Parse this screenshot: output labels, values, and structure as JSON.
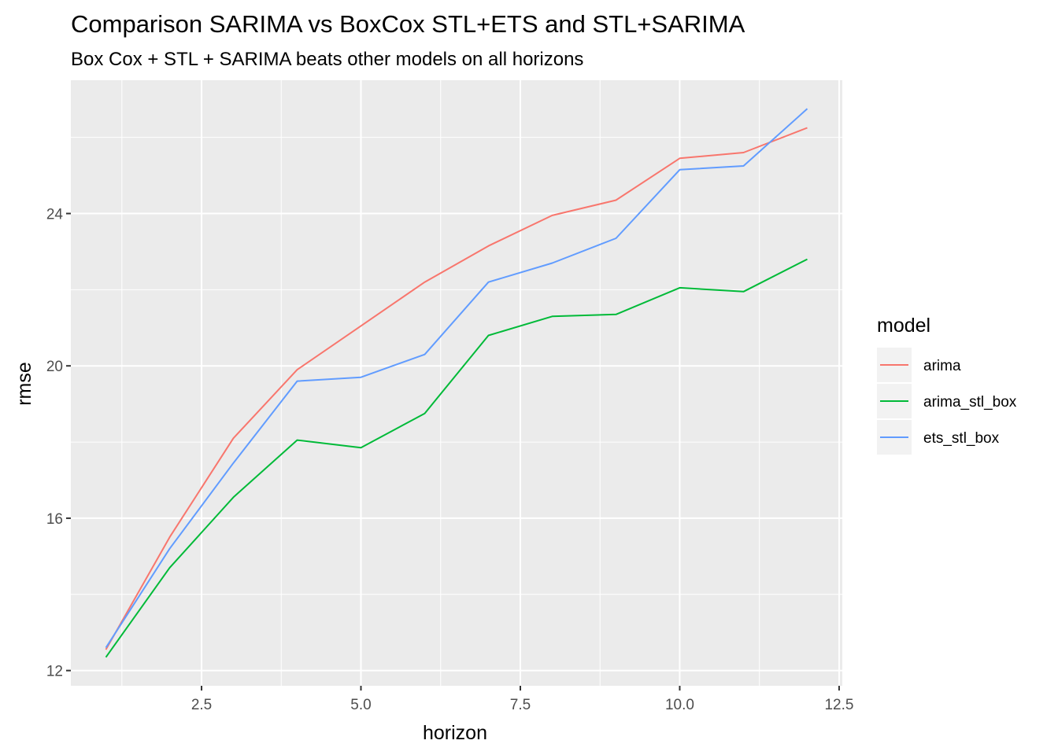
{
  "chart_data": {
    "type": "line",
    "title": "Comparison SARIMA vs BoxCox STL+ETS and STL+SARIMA",
    "subtitle": "Box Cox + STL + SARIMA beats other models on all horizons",
    "xlabel": "horizon",
    "ylabel": "rmse",
    "xlim": [
      0.45,
      12.55
    ],
    "ylim": [
      11.6,
      27.5
    ],
    "x_ticks": [
      2.5,
      5.0,
      7.5,
      10.0,
      12.5
    ],
    "x_tick_labels": [
      "2.5",
      "5.0",
      "7.5",
      "10.0",
      "12.5"
    ],
    "y_ticks": [
      12,
      16,
      20,
      24
    ],
    "y_tick_labels": [
      "12",
      "16",
      "20",
      "24"
    ],
    "grid": true,
    "legend_title": "model",
    "legend_position": "right",
    "x": [
      1,
      2,
      3,
      4,
      5,
      6,
      7,
      8,
      9,
      10,
      11,
      12
    ],
    "series": [
      {
        "name": "arima",
        "color": "#F8766D",
        "values": [
          12.55,
          15.5,
          18.1,
          19.9,
          21.05,
          22.2,
          23.15,
          23.95,
          24.35,
          25.45,
          25.6,
          26.25
        ]
      },
      {
        "name": "arima_stl_box",
        "color": "#00BA38",
        "values": [
          12.35,
          14.7,
          16.55,
          18.05,
          17.85,
          18.75,
          20.8,
          21.3,
          21.35,
          22.05,
          21.95,
          22.8
        ]
      },
      {
        "name": "ets_stl_box",
        "color": "#619CFF",
        "values": [
          12.6,
          15.2,
          17.45,
          19.6,
          19.7,
          20.3,
          22.2,
          22.7,
          23.35,
          25.15,
          25.25,
          26.75
        ]
      }
    ]
  }
}
